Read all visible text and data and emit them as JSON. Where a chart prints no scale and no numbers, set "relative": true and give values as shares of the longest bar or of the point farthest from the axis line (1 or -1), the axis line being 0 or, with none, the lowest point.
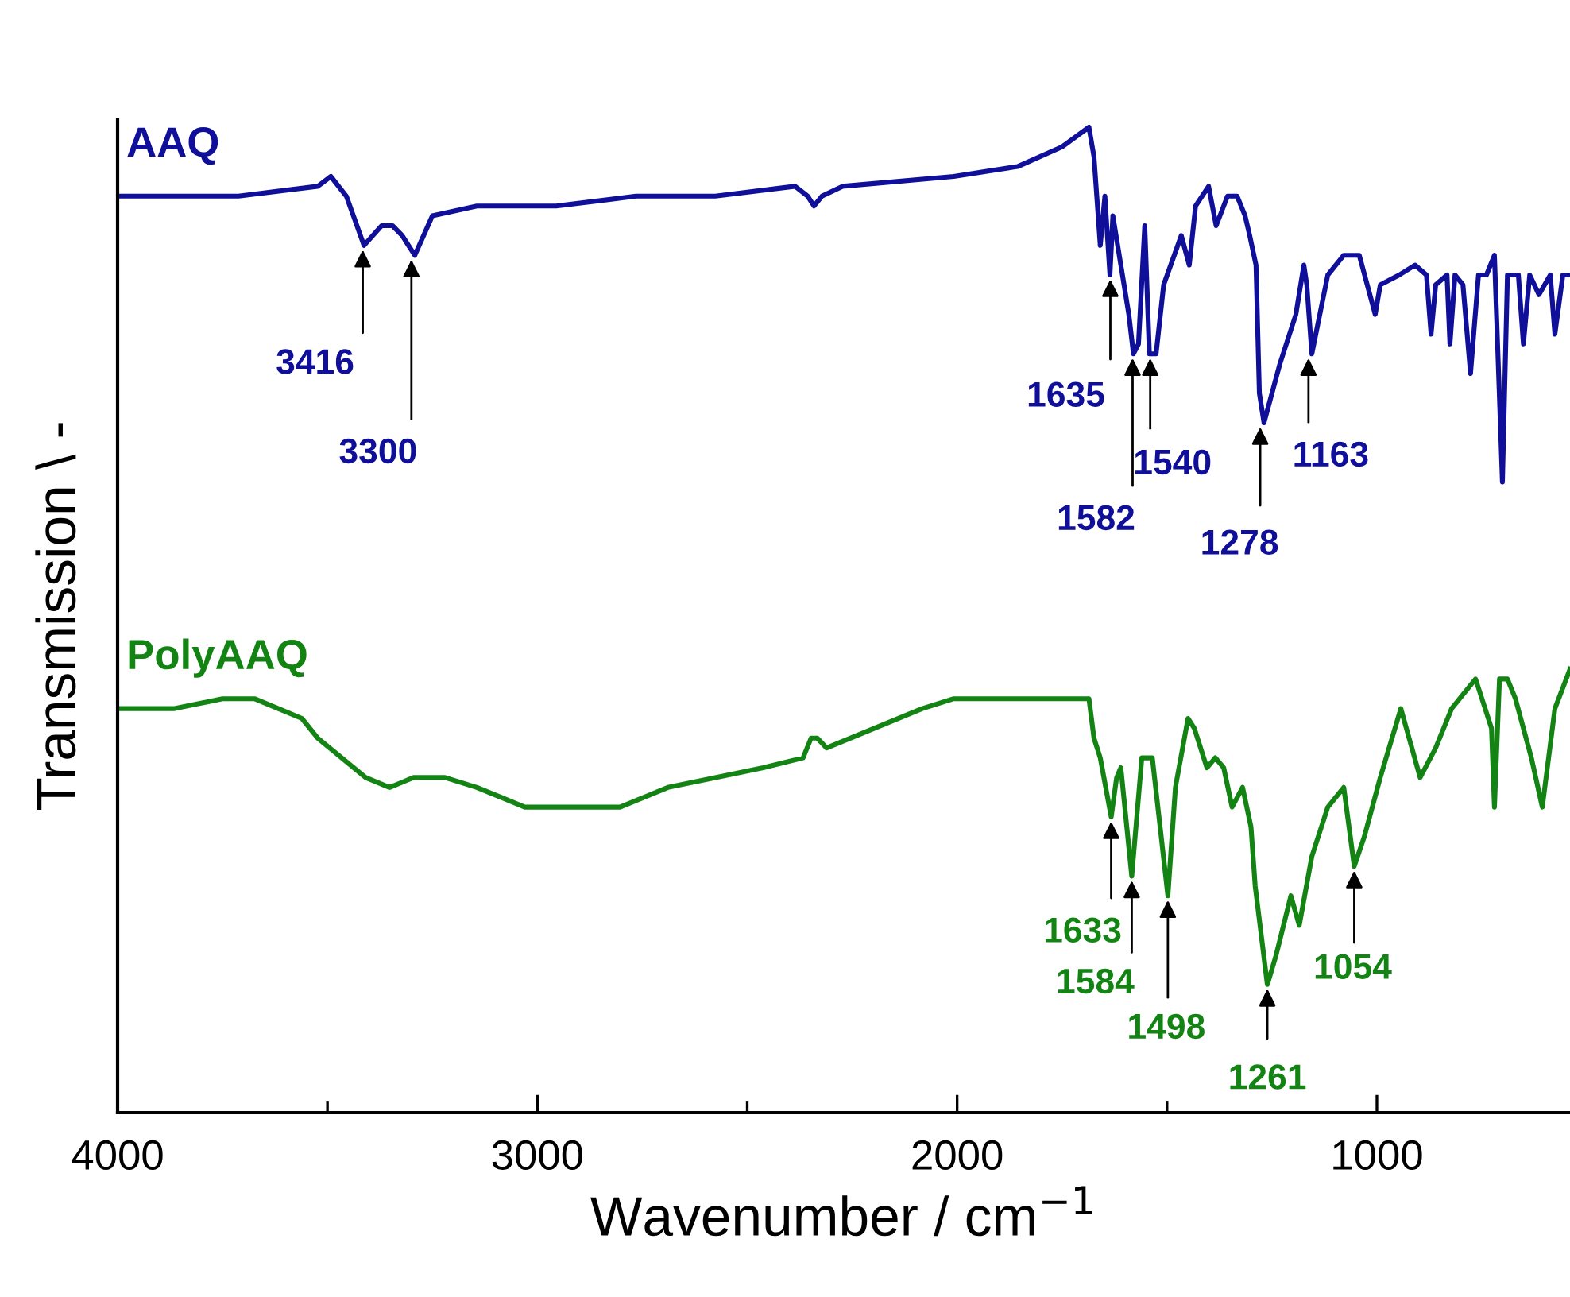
{
  "chart_data": {
    "type": "line",
    "relative": true,
    "xlabel": "Wavenumber / cm$^{−1}$",
    "ylabel": "Transmission \\ -",
    "xlim": [
      4000,
      540
    ],
    "xticks": [
      4000,
      {
        "value": 3500,
        "label": null
      },
      3000,
      {
        "value": 2500,
        "label": null
      },
      2000,
      {
        "value": 1500,
        "label": null
      },
      1000
    ],
    "grid": false,
    "series": [
      {
        "name": "AAQ",
        "color": "#0f0f9a",
        "x": [
          4000,
          3712,
          3523,
          3492,
          3455,
          3413,
          3371,
          3345,
          3322,
          3292,
          3250,
          3144,
          2955,
          2765,
          2576,
          2386,
          2356,
          2341,
          2322,
          2273,
          2008,
          1856,
          1750,
          1686,
          1674,
          1659,
          1648,
          1636,
          1629,
          1610,
          1591,
          1580,
          1568,
          1553,
          1542,
          1526,
          1508,
          1466,
          1447,
          1432,
          1401,
          1383,
          1356,
          1333,
          1314,
          1303,
          1288,
          1280,
          1269,
          1231,
          1193,
          1174,
          1167,
          1155,
          1117,
          1079,
          1042,
          1004,
          992,
          947,
          909,
          882,
          871,
          860,
          833,
          826,
          814,
          795,
          777,
          758,
          739,
          720,
          701,
          689,
          663,
          651,
          636,
          614,
          587,
          576,
          557,
          540
        ],
        "values": [
          0.93,
          0.93,
          0.94,
          0.95,
          0.93,
          0.88,
          0.9,
          0.9,
          0.89,
          0.87,
          0.91,
          0.92,
          0.92,
          0.93,
          0.93,
          0.94,
          0.93,
          0.92,
          0.93,
          0.94,
          0.95,
          0.96,
          0.98,
          1.0,
          0.97,
          0.88,
          0.93,
          0.85,
          0.91,
          0.86,
          0.81,
          0.77,
          0.78,
          0.9,
          0.77,
          0.77,
          0.84,
          0.89,
          0.86,
          0.92,
          0.94,
          0.9,
          0.93,
          0.93,
          0.91,
          0.89,
          0.86,
          0.73,
          0.7,
          0.76,
          0.81,
          0.86,
          0.84,
          0.77,
          0.85,
          0.87,
          0.87,
          0.81,
          0.84,
          0.85,
          0.86,
          0.85,
          0.79,
          0.84,
          0.85,
          0.78,
          0.85,
          0.84,
          0.75,
          0.85,
          0.85,
          0.87,
          0.64,
          0.85,
          0.85,
          0.78,
          0.85,
          0.83,
          0.85,
          0.79,
          0.85,
          0.85
        ]
      },
      {
        "name": "PolyAAQ",
        "color": "#138413",
        "x": [
          4000,
          3864,
          3750,
          3674,
          3617,
          3561,
          3523,
          3466,
          3409,
          3352,
          3295,
          3220,
          3144,
          3087,
          3030,
          2955,
          2879,
          2803,
          2689,
          2576,
          2462,
          2367,
          2348,
          2333,
          2311,
          2197,
          2083,
          2008,
          1856,
          1742,
          1686,
          1674,
          1659,
          1633,
          1620,
          1610,
          1584,
          1560,
          1535,
          1498,
          1480,
          1450,
          1435,
          1405,
          1385,
          1365,
          1345,
          1320,
          1300,
          1290,
          1261,
          1240,
          1205,
          1185,
          1155,
          1117,
          1079,
          1054,
          1030,
          992,
          943,
          897,
          860,
          822,
          765,
          727,
          720,
          708,
          689,
          670,
          632,
          606,
          576,
          540
        ],
        "values": [
          0.41,
          0.41,
          0.42,
          0.42,
          0.41,
          0.4,
          0.38,
          0.36,
          0.34,
          0.33,
          0.34,
          0.34,
          0.33,
          0.32,
          0.31,
          0.31,
          0.31,
          0.31,
          0.33,
          0.34,
          0.35,
          0.36,
          0.38,
          0.38,
          0.37,
          0.39,
          0.41,
          0.42,
          0.42,
          0.42,
          0.42,
          0.38,
          0.36,
          0.3,
          0.34,
          0.35,
          0.24,
          0.36,
          0.36,
          0.22,
          0.33,
          0.4,
          0.39,
          0.35,
          0.36,
          0.35,
          0.31,
          0.33,
          0.29,
          0.23,
          0.13,
          0.16,
          0.22,
          0.19,
          0.26,
          0.31,
          0.33,
          0.25,
          0.28,
          0.34,
          0.41,
          0.34,
          0.37,
          0.41,
          0.44,
          0.39,
          0.31,
          0.44,
          0.44,
          0.42,
          0.36,
          0.31,
          0.41,
          0.45
        ]
      }
    ],
    "annotations": [
      {
        "text": "3416",
        "x": 3416,
        "y": 0.88
      },
      {
        "text": "3300",
        "x": 3300,
        "y": 0.87
      },
      {
        "text": "1635",
        "x": 1635,
        "y": 0.85
      },
      {
        "text": "1582",
        "x": 1582,
        "y": 0.77
      },
      {
        "text": "1540",
        "x": 1540,
        "y": 0.77
      },
      {
        "text": "1278",
        "x": 1278,
        "y": 0.7
      },
      {
        "text": "1163",
        "x": 1163,
        "y": 0.77
      },
      {
        "text": "1633",
        "x": 1633,
        "y": 0.3
      },
      {
        "text": "1584",
        "x": 1584,
        "y": 0.24
      },
      {
        "text": "1498",
        "x": 1498,
        "y": 0.22
      },
      {
        "text": "1261",
        "x": 1261,
        "y": 0.13
      },
      {
        "text": "1054",
        "x": 1054,
        "y": 0.25
      }
    ]
  }
}
